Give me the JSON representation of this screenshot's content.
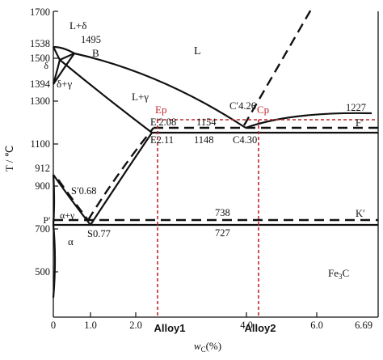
{
  "axes": {
    "y_label": "T / ℃",
    "y_ticks": [
      "1700",
      "1538",
      "1500",
      "1495",
      "δ",
      "1394",
      "1300",
      "1100",
      "912",
      "900",
      "700",
      "500"
    ],
    "x_ticks": [
      "0",
      "1.0",
      "2.0",
      "4.0",
      "6.0",
      "6.69"
    ],
    "x_label_main": "w",
    "x_label_sub": "C",
    "x_label_unit": "(%)"
  },
  "phase_labels": {
    "l_delta": "L+δ",
    "b": "B",
    "l": "L",
    "delta_gamma": "δ+γ",
    "l_gamma": "L+γ",
    "alpha_gamma": "α+γ",
    "alpha": "α",
    "p_prime": "P′",
    "k_prime": "K′",
    "f_prime": "F′",
    "fe3c_main": "Fe",
    "fe3c_sub": "3",
    "fe3c_tail": "C"
  },
  "point_labels": {
    "c_prime": "C′4.26",
    "e_prime": "E′2.08",
    "e": "E2.11",
    "c": "C4.30",
    "s_prime": "S′0.68",
    "s": "S0.77"
  },
  "temperature_labels": {
    "t1154": "1154",
    "t1148": "1148",
    "t1227": "1227",
    "t738": "738",
    "t727": "727"
  },
  "red_markers": {
    "ep": "Ep",
    "cp": "Cp"
  },
  "alloys": {
    "alloy1": "Alloy1",
    "alloy2": "Alloy2"
  }
}
